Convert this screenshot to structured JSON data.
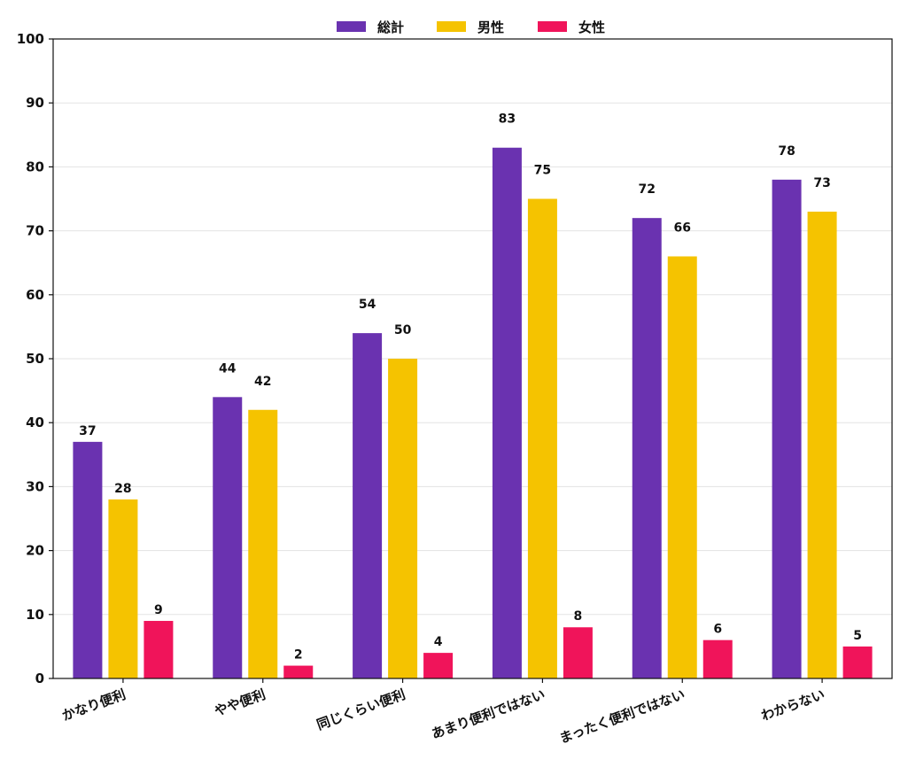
{
  "chart_data": {
    "type": "bar",
    "categories": [
      "かなり便利",
      "やや便利",
      "同じくらい便利",
      "あまり便利ではない",
      "まったく便利ではない",
      "わからない"
    ],
    "series": [
      {
        "name": "総計",
        "color": "#6a32b0",
        "values": [
          37,
          44,
          54,
          83,
          72,
          78
        ]
      },
      {
        "name": "男性",
        "color": "#f5c300",
        "values": [
          28,
          42,
          50,
          75,
          66,
          73
        ]
      },
      {
        "name": "女性",
        "color": "#f0145a",
        "values": [
          9,
          2,
          4,
          8,
          6,
          5
        ]
      }
    ],
    "ylim": [
      0,
      100
    ],
    "yticks": [
      0,
      10,
      20,
      30,
      40,
      50,
      60,
      70,
      80,
      90,
      100
    ],
    "grid": true,
    "legend_position": "top-center",
    "title": "",
    "xlabel": "",
    "ylabel": ""
  }
}
